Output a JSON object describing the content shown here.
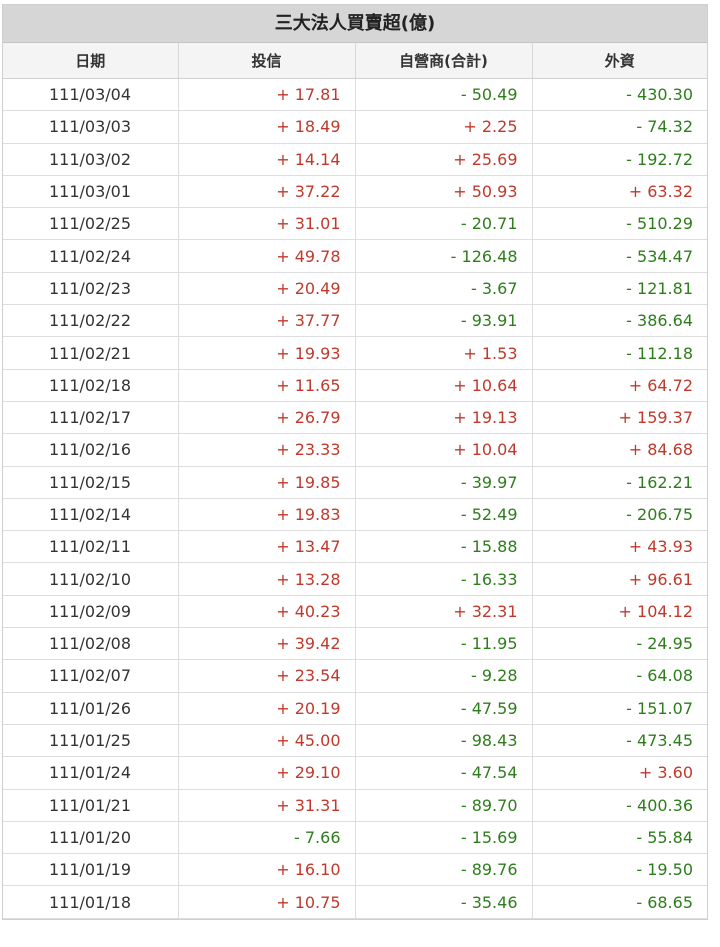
{
  "table": {
    "title": "三大法人買賣超(億)",
    "columns": [
      "日期",
      "投信",
      "自營商(合計)",
      "外資"
    ],
    "rows": [
      {
        "date": "111/03/04",
        "trust": "+ 17.81",
        "dealer": "- 50.49",
        "foreign": "- 430.30"
      },
      {
        "date": "111/03/03",
        "trust": "+ 18.49",
        "dealer": "+ 2.25",
        "foreign": "- 74.32"
      },
      {
        "date": "111/03/02",
        "trust": "+ 14.14",
        "dealer": "+ 25.69",
        "foreign": "- 192.72"
      },
      {
        "date": "111/03/01",
        "trust": "+ 37.22",
        "dealer": "+ 50.93",
        "foreign": "+ 63.32"
      },
      {
        "date": "111/02/25",
        "trust": "+ 31.01",
        "dealer": "- 20.71",
        "foreign": "- 510.29"
      },
      {
        "date": "111/02/24",
        "trust": "+ 49.78",
        "dealer": "- 126.48",
        "foreign": "- 534.47"
      },
      {
        "date": "111/02/23",
        "trust": "+ 20.49",
        "dealer": "- 3.67",
        "foreign": "- 121.81"
      },
      {
        "date": "111/02/22",
        "trust": "+ 37.77",
        "dealer": "- 93.91",
        "foreign": "- 386.64"
      },
      {
        "date": "111/02/21",
        "trust": "+ 19.93",
        "dealer": "+ 1.53",
        "foreign": "- 112.18"
      },
      {
        "date": "111/02/18",
        "trust": "+ 11.65",
        "dealer": "+ 10.64",
        "foreign": "+ 64.72"
      },
      {
        "date": "111/02/17",
        "trust": "+ 26.79",
        "dealer": "+ 19.13",
        "foreign": "+ 159.37"
      },
      {
        "date": "111/02/16",
        "trust": "+ 23.33",
        "dealer": "+ 10.04",
        "foreign": "+ 84.68"
      },
      {
        "date": "111/02/15",
        "trust": "+ 19.85",
        "dealer": "- 39.97",
        "foreign": "- 162.21"
      },
      {
        "date": "111/02/14",
        "trust": "+ 19.83",
        "dealer": "- 52.49",
        "foreign": "- 206.75"
      },
      {
        "date": "111/02/11",
        "trust": "+ 13.47",
        "dealer": "- 15.88",
        "foreign": "+ 43.93"
      },
      {
        "date": "111/02/10",
        "trust": "+ 13.28",
        "dealer": "- 16.33",
        "foreign": "+ 96.61"
      },
      {
        "date": "111/02/09",
        "trust": "+ 40.23",
        "dealer": "+ 32.31",
        "foreign": "+ 104.12"
      },
      {
        "date": "111/02/08",
        "trust": "+ 39.42",
        "dealer": "- 11.95",
        "foreign": "- 24.95"
      },
      {
        "date": "111/02/07",
        "trust": "+ 23.54",
        "dealer": "- 9.28",
        "foreign": "- 64.08"
      },
      {
        "date": "111/01/26",
        "trust": "+ 20.19",
        "dealer": "- 47.59",
        "foreign": "- 151.07"
      },
      {
        "date": "111/01/25",
        "trust": "+ 45.00",
        "dealer": "- 98.43",
        "foreign": "- 473.45"
      },
      {
        "date": "111/01/24",
        "trust": "+ 29.10",
        "dealer": "- 47.54",
        "foreign": "+ 3.60"
      },
      {
        "date": "111/01/21",
        "trust": "+ 31.31",
        "dealer": "- 89.70",
        "foreign": "- 400.36"
      },
      {
        "date": "111/01/20",
        "trust": "- 7.66",
        "dealer": "- 15.69",
        "foreign": "- 55.84"
      },
      {
        "date": "111/01/19",
        "trust": "+ 16.10",
        "dealer": "- 89.76",
        "foreign": "- 19.50"
      },
      {
        "date": "111/01/18",
        "trust": "+ 10.75",
        "dealer": "- 35.46",
        "foreign": "- 68.65"
      }
    ]
  },
  "colors": {
    "positive": "#c0392b",
    "negative": "#2e7d1c",
    "title_bg": "#d6d6d6",
    "header_bg": "#f4f4f4"
  }
}
